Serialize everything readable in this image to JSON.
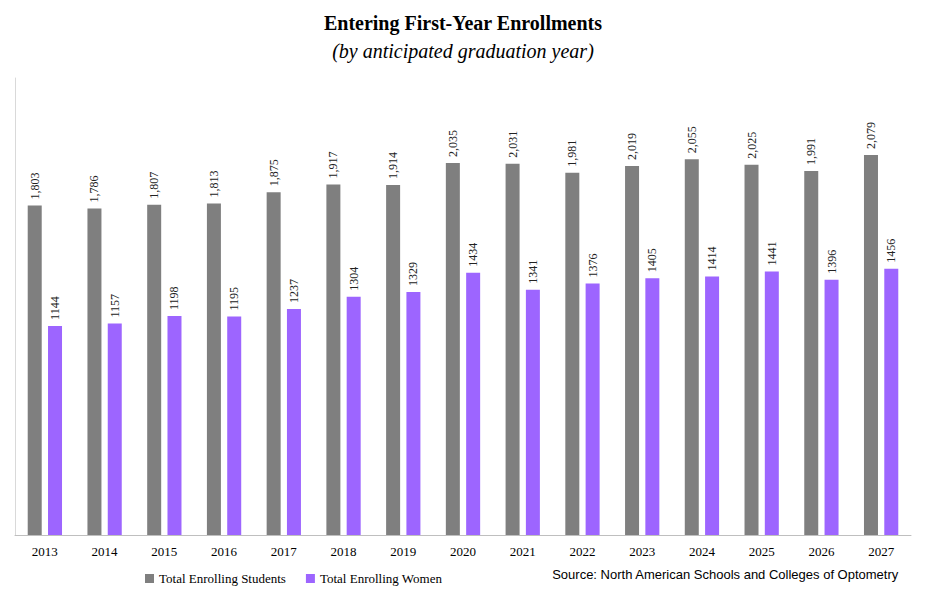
{
  "chart_data": {
    "type": "bar",
    "title": "Entering First-Year Enrollments",
    "subtitle": "(by anticipated graduation year)",
    "source": "Source: North American Schools and Colleges of Optometry",
    "categories": [
      "2013",
      "2014",
      "2015",
      "2016",
      "2017",
      "2018",
      "2019",
      "2020",
      "2021",
      "2022",
      "2023",
      "2024",
      "2025",
      "2026",
      "2027"
    ],
    "series": [
      {
        "name": "Total Enrolling Students",
        "color": "#7f7f7f",
        "values": [
          1803,
          1786,
          1807,
          1813,
          1875,
          1917,
          1914,
          2035,
          2031,
          1981,
          2019,
          2055,
          2025,
          1991,
          2079
        ],
        "value_labels": [
          "1,803",
          "1,786",
          "1,807",
          "1,813",
          "1,875",
          "1,917",
          "1,914",
          "2,035",
          "2,031",
          "1,981",
          "2,019",
          "2,055",
          "2,025",
          "1,991",
          "2,079"
        ]
      },
      {
        "name": "Total Enrolling Women",
        "color": "#9d65ff",
        "values": [
          1144,
          1157,
          1198,
          1195,
          1237,
          1304,
          1329,
          1434,
          1341,
          1376,
          1405,
          1414,
          1441,
          1396,
          1456
        ]
      }
    ],
    "ylim": [
      0,
      2500
    ],
    "grid": false,
    "legend": "bottom",
    "data_labels": true,
    "tick_labels": "x"
  }
}
